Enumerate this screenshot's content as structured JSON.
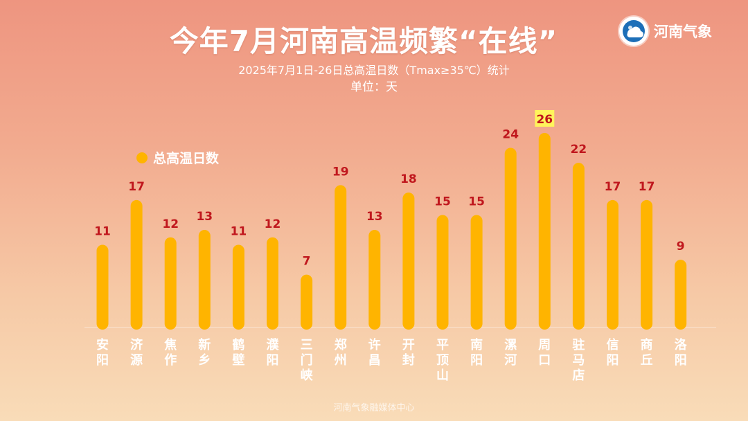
{
  "header": {
    "title": "今年7月河南高温频繁“在线”",
    "subtitle": "2025年7月1日-26日总高温日数（Tmax≥35℃）统计",
    "unit": "单位：天"
  },
  "logo": {
    "text": "河南气象",
    "icon": "weather-logo-icon"
  },
  "footer": {
    "text": "河南气象融媒体中心"
  },
  "colors": {
    "bar": "#ffb400",
    "value_label": "#c0171d",
    "highlight_bg": "#fff45c",
    "category_label": "#ffffff"
  },
  "chart_data": {
    "type": "bar",
    "categories": [
      "安阳",
      "济源",
      "焦作",
      "新乡",
      "鹤壁",
      "濮阳",
      "三门峡",
      "郑州",
      "许昌",
      "开封",
      "平顶山",
      "南阳",
      "漯河",
      "周口",
      "驻马店",
      "信阳",
      "商丘",
      "洛阳"
    ],
    "series": [
      {
        "name": "总高温日数",
        "values": [
          11,
          17,
          12,
          13,
          11,
          12,
          7,
          19,
          13,
          18,
          15,
          15,
          24,
          26,
          22,
          17,
          17,
          9
        ]
      }
    ],
    "highlight": "周口",
    "ylim": [
      0,
      26
    ],
    "grid": false,
    "legend": "top-left"
  }
}
